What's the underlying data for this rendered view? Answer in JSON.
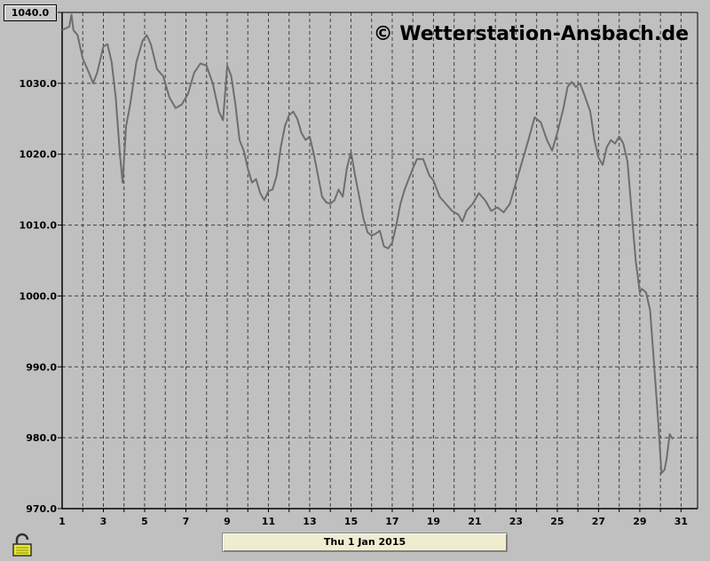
{
  "credit": "© Wetterstation-Ansbach.de",
  "date_label": "Thu 1 Jan 2015",
  "ymax_label": "1040.0",
  "colors": {
    "background": "#c0c0c0",
    "line": "#6e6e6e",
    "grid": "#404040"
  },
  "icons": {
    "lock": "padlock-icon"
  },
  "chart_data": {
    "type": "line",
    "title": "",
    "xlabel": "",
    "ylabel": "",
    "xlim": [
      1,
      31.8
    ],
    "ylim": [
      970,
      1040
    ],
    "y_ticks": [
      970,
      980,
      990,
      1000,
      1010,
      1020,
      1030,
      1040
    ],
    "y_tick_labels": [
      "970.0",
      "980.0",
      "990.0",
      "1000.0",
      "1010.0",
      "1020.0",
      "1030.0",
      "1040.0"
    ],
    "x_ticks": [
      1,
      3,
      5,
      7,
      9,
      11,
      13,
      15,
      17,
      19,
      21,
      23,
      25,
      27,
      29,
      31
    ],
    "x_tick_labels": [
      "1",
      "3",
      "5",
      "7",
      "9",
      "11",
      "13",
      "15",
      "17",
      "19",
      "21",
      "23",
      "25",
      "27",
      "29",
      "31"
    ],
    "grid": true,
    "series": [
      {
        "points": [
          [
            1.0,
            1037.5
          ],
          [
            1.2,
            1037.8
          ],
          [
            1.35,
            1038.0
          ],
          [
            1.45,
            1039.7
          ],
          [
            1.55,
            1037.5
          ],
          [
            1.75,
            1036.8
          ],
          [
            2.0,
            1033.5
          ],
          [
            2.3,
            1031.5
          ],
          [
            2.5,
            1030.0
          ],
          [
            2.7,
            1031.5
          ],
          [
            3.0,
            1035.2
          ],
          [
            3.2,
            1035.5
          ],
          [
            3.4,
            1033.0
          ],
          [
            3.6,
            1028.0
          ],
          [
            3.8,
            1020.0
          ],
          [
            3.93,
            1016.0
          ],
          [
            4.1,
            1024.0
          ],
          [
            4.3,
            1027.0
          ],
          [
            4.6,
            1033.0
          ],
          [
            4.9,
            1036.0
          ],
          [
            5.1,
            1036.8
          ],
          [
            5.3,
            1035.5
          ],
          [
            5.6,
            1032.0
          ],
          [
            5.9,
            1031.0
          ],
          [
            6.2,
            1028.0
          ],
          [
            6.5,
            1026.5
          ],
          [
            6.8,
            1027.0
          ],
          [
            7.1,
            1028.5
          ],
          [
            7.4,
            1031.5
          ],
          [
            7.7,
            1032.8
          ],
          [
            8.0,
            1032.5
          ],
          [
            8.3,
            1030.0
          ],
          [
            8.6,
            1026.0
          ],
          [
            8.8,
            1024.8
          ],
          [
            9.0,
            1032.5
          ],
          [
            9.2,
            1031.0
          ],
          [
            9.4,
            1027.0
          ],
          [
            9.6,
            1022.0
          ],
          [
            9.8,
            1020.5
          ],
          [
            10.0,
            1018.0
          ],
          [
            10.2,
            1016.0
          ],
          [
            10.4,
            1016.5
          ],
          [
            10.6,
            1014.5
          ],
          [
            10.8,
            1013.5
          ],
          [
            11.0,
            1014.8
          ],
          [
            11.2,
            1015.0
          ],
          [
            11.4,
            1017.0
          ],
          [
            11.6,
            1021.0
          ],
          [
            11.8,
            1024.0
          ],
          [
            12.0,
            1025.5
          ],
          [
            12.2,
            1026.0
          ],
          [
            12.4,
            1025.0
          ],
          [
            12.6,
            1023.0
          ],
          [
            12.8,
            1022.0
          ],
          [
            13.0,
            1022.5
          ],
          [
            13.2,
            1020.0
          ],
          [
            13.4,
            1017.0
          ],
          [
            13.6,
            1014.0
          ],
          [
            13.8,
            1013.2
          ],
          [
            14.0,
            1013.0
          ],
          [
            14.2,
            1013.5
          ],
          [
            14.4,
            1015.0
          ],
          [
            14.6,
            1014.0
          ],
          [
            14.8,
            1018.0
          ],
          [
            15.0,
            1020.3
          ],
          [
            15.2,
            1017.0
          ],
          [
            15.4,
            1014.0
          ],
          [
            15.6,
            1011.0
          ],
          [
            15.8,
            1009.0
          ],
          [
            16.0,
            1008.5
          ],
          [
            16.2,
            1008.8
          ],
          [
            16.4,
            1009.2
          ],
          [
            16.6,
            1007.0
          ],
          [
            16.8,
            1006.7
          ],
          [
            17.0,
            1007.5
          ],
          [
            17.2,
            1010.0
          ],
          [
            17.4,
            1013.0
          ],
          [
            17.6,
            1015.0
          ],
          [
            17.8,
            1016.5
          ],
          [
            18.0,
            1018.0
          ],
          [
            18.2,
            1019.3
          ],
          [
            18.5,
            1019.3
          ],
          [
            18.8,
            1017.0
          ],
          [
            19.0,
            1016.3
          ],
          [
            19.3,
            1014.0
          ],
          [
            19.6,
            1013.0
          ],
          [
            19.9,
            1012.0
          ],
          [
            20.2,
            1011.5
          ],
          [
            20.4,
            1010.5
          ],
          [
            20.6,
            1012.0
          ],
          [
            20.9,
            1013.0
          ],
          [
            21.2,
            1014.5
          ],
          [
            21.5,
            1013.5
          ],
          [
            21.8,
            1012.0
          ],
          [
            22.1,
            1012.5
          ],
          [
            22.4,
            1011.8
          ],
          [
            22.7,
            1013.0
          ],
          [
            23.0,
            1016.0
          ],
          [
            23.3,
            1019.0
          ],
          [
            23.6,
            1022.0
          ],
          [
            23.9,
            1025.2
          ],
          [
            24.2,
            1024.5
          ],
          [
            24.5,
            1022.0
          ],
          [
            24.75,
            1020.5
          ],
          [
            25.0,
            1023.0
          ],
          [
            25.3,
            1026.5
          ],
          [
            25.5,
            1029.5
          ],
          [
            25.7,
            1030.2
          ],
          [
            25.9,
            1029.5
          ],
          [
            26.1,
            1030.0
          ],
          [
            26.3,
            1028.5
          ],
          [
            26.6,
            1026.0
          ],
          [
            26.8,
            1022.0
          ],
          [
            27.0,
            1019.5
          ],
          [
            27.2,
            1018.5
          ],
          [
            27.4,
            1021.0
          ],
          [
            27.6,
            1022.0
          ],
          [
            27.8,
            1021.5
          ],
          [
            28.0,
            1022.5
          ],
          [
            28.2,
            1021.5
          ],
          [
            28.4,
            1019.0
          ],
          [
            28.6,
            1012.0
          ],
          [
            28.8,
            1005.0
          ],
          [
            29.0,
            1000.5
          ],
          [
            29.1,
            1001.0
          ],
          [
            29.3,
            1000.5
          ],
          [
            29.5,
            998.0
          ],
          [
            29.7,
            990.0
          ],
          [
            29.9,
            982.0
          ],
          [
            30.05,
            975.0
          ],
          [
            30.2,
            975.5
          ],
          [
            30.3,
            977.0
          ],
          [
            30.45,
            980.5
          ],
          [
            30.6,
            979.8
          ]
        ]
      }
    ]
  }
}
